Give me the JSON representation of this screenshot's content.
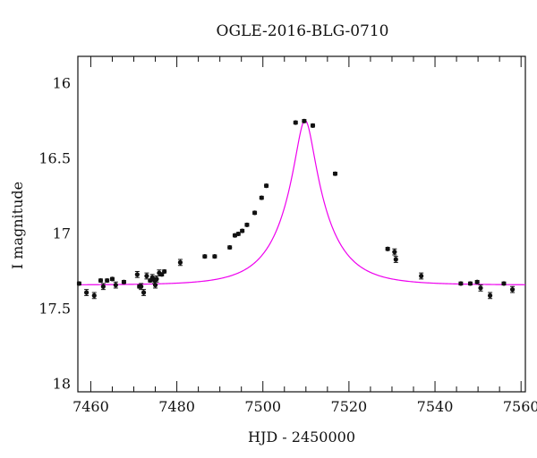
{
  "chart_data": {
    "type": "scatter",
    "title": "OGLE-2016-BLG-0710",
    "xlabel": "HJD - 2450000",
    "ylabel": "I magnitude",
    "xlim": [
      7457,
      7561
    ],
    "ylim": [
      18.05,
      15.82
    ],
    "y_inverted": true,
    "grid": false,
    "x_ticks": [
      7460,
      7480,
      7500,
      7520,
      7540,
      7560
    ],
    "y_ticks": [
      16,
      16.5,
      17,
      17.5,
      18
    ],
    "x_tick_labels": [
      "7460",
      "7480",
      "7500",
      "7520",
      "7540",
      "7560"
    ],
    "y_tick_labels": [
      "16",
      "16.5",
      "17",
      "17.5",
      "18"
    ],
    "colors": {
      "points": "#111111",
      "model": "#ee00ee",
      "frame": "#111111"
    },
    "model": {
      "name": "",
      "t0": 7509.8,
      "tE": 10.2,
      "u0": 0.2,
      "baseline_mag": 17.34
    },
    "series": [
      {
        "x": [
          7457.3,
          7459.0,
          7460.8,
          7462.3,
          7462.9,
          7463.8,
          7465.0,
          7465.8,
          7467.7,
          7470.8,
          7471.3,
          7471.7,
          7472.3,
          7473.0,
          7473.8,
          7474.3,
          7474.8,
          7475.0,
          7475.3,
          7475.9,
          7476.5,
          7477.1,
          7480.8,
          7486.5,
          7488.8,
          7492.3,
          7493.5,
          7494.3,
          7495.2,
          7496.3,
          7498.1,
          7499.7,
          7500.8,
          7507.6,
          7509.6,
          7511.6,
          7516.8,
          7529.0,
          7530.6,
          7530.9,
          7536.8,
          7546.0,
          7548.2,
          7549.8,
          7550.6,
          7552.8,
          7556.0,
          7558.0
        ],
        "y": [
          17.33,
          17.39,
          17.41,
          17.31,
          17.35,
          17.31,
          17.3,
          17.34,
          17.32,
          17.27,
          17.35,
          17.35,
          17.39,
          17.28,
          17.31,
          17.29,
          17.31,
          17.34,
          17.3,
          17.26,
          17.27,
          17.25,
          17.19,
          17.15,
          17.15,
          17.09,
          17.01,
          17.0,
          16.98,
          16.94,
          16.86,
          16.76,
          16.68,
          16.26,
          16.25,
          16.28,
          16.6,
          17.1,
          17.12,
          17.17,
          17.28,
          17.33,
          17.33,
          17.32,
          17.36,
          17.41,
          17.33,
          17.37
        ],
        "err": [
          0.01,
          0.02,
          0.02,
          0.01,
          0.02,
          0.01,
          0.01,
          0.02,
          0.01,
          0.02,
          0.01,
          0.02,
          0.02,
          0.02,
          0.01,
          0.02,
          0.02,
          0.02,
          0.02,
          0.02,
          0.01,
          0.01,
          0.02,
          0.01,
          0.01,
          0.01,
          0.01,
          0.01,
          0.01,
          0.01,
          0.01,
          0.01,
          0.01,
          0.01,
          0.01,
          0.01,
          0.01,
          0.01,
          0.02,
          0.02,
          0.02,
          0.01,
          0.01,
          0.01,
          0.02,
          0.02,
          0.01,
          0.02
        ]
      }
    ]
  }
}
